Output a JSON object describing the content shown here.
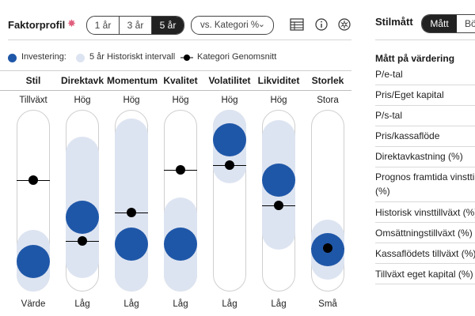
{
  "header": {
    "title": "Faktorprofil",
    "period_options": [
      "1 år",
      "3 år",
      "5 år"
    ],
    "period_selected": "5 år",
    "compare_dropdown": "vs. Kategori %"
  },
  "legend": {
    "investment": "Investering:",
    "historical": "5 år Historiskt intervall",
    "category": "Kategori Genomsnitt"
  },
  "colors": {
    "investment": "#1f57a8",
    "range": "#dde4f1",
    "category": "#000000"
  },
  "factors": [
    {
      "name": "Stil",
      "top": "Tillväxt",
      "bottom": "Värde",
      "investment": 0.09,
      "category": 0.64,
      "range": [
        0.0,
        0.19
      ]
    },
    {
      "name": "Direktavk",
      "top": "Hög",
      "bottom": "Låg",
      "investment": 0.39,
      "category": 0.23,
      "range": [
        0.09,
        0.82
      ]
    },
    {
      "name": "Momentum",
      "top": "Hög",
      "bottom": "Låg",
      "investment": 0.21,
      "category": 0.42,
      "range": [
        0.0,
        0.94
      ]
    },
    {
      "name": "Kvalitet",
      "top": "Hög",
      "bottom": "Låg",
      "investment": 0.21,
      "category": 0.71,
      "range": [
        0.0,
        0.41
      ]
    },
    {
      "name": "Volatilitet",
      "top": "Hög",
      "bottom": "Låg",
      "investment": 0.91,
      "category": 0.74,
      "range": [
        0.73,
        1.0
      ]
    },
    {
      "name": "Likviditet",
      "top": "Hög",
      "bottom": "Låg",
      "investment": 0.64,
      "category": 0.47,
      "range": [
        0.28,
        0.93
      ]
    },
    {
      "name": "Storlek",
      "top": "Stora",
      "bottom": "Små",
      "investment": 0.17,
      "category": 0.18,
      "range": [
        0.08,
        0.26
      ]
    }
  ],
  "style_panel": {
    "title": "Stilmått",
    "toggle_selected": "Mått",
    "toggle_other": "Bö",
    "section": "Mått på värdering",
    "rows": [
      "P/e-tal",
      "Pris/Eget kapital",
      "P/s-tal",
      "Pris/kassaflöde",
      "Direktavkastning (%)",
      "Prognos framtida vinsttill",
      "(%)",
      "Historisk vinsttillväxt (%)",
      "Omsättningstillväxt (%)",
      "Kassaflödets tillväxt (%)",
      "Tillväxt eget kapital (%)"
    ]
  }
}
